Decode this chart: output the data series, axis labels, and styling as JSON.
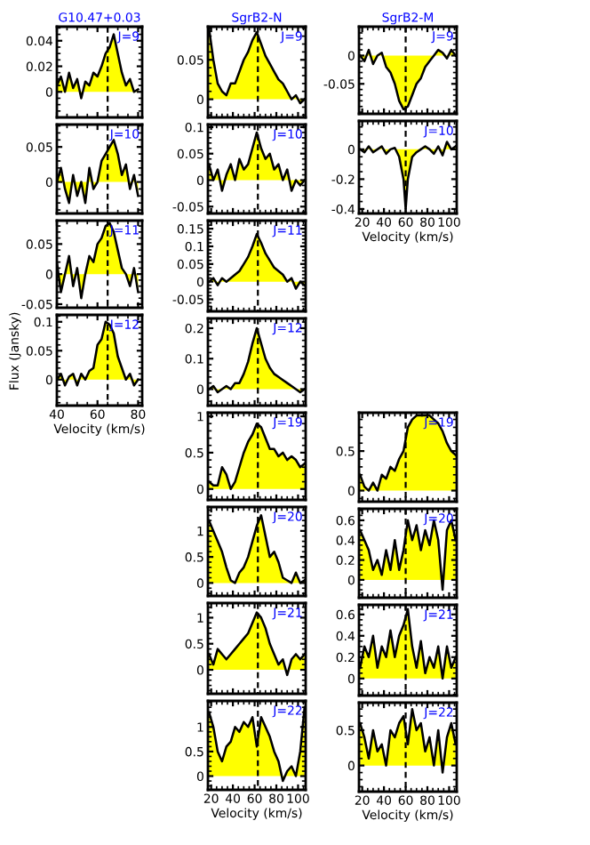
{
  "chart_data": [
    {
      "type": "area",
      "title": "G10.47+0.03",
      "annotations": [
        "J=9"
      ],
      "x": [
        40,
        42,
        44,
        46,
        48,
        50,
        52,
        54,
        56,
        58,
        60,
        62,
        64,
        66,
        68,
        70,
        72,
        74,
        76,
        78,
        80
      ],
      "series": [
        {
          "color": "#ffff00",
          "values": [
            0.005,
            0.012,
            0.0,
            0.015,
            0.003,
            0.01,
            -0.005,
            0.008,
            0.005,
            0.015,
            0.012,
            0.02,
            0.03,
            0.035,
            0.045,
            0.03,
            0.015,
            0.005,
            0.01,
            0.0,
            0.002
          ]
        }
      ],
      "xlim": [
        40,
        82
      ],
      "xticks": [
        40,
        60,
        80
      ],
      "ylim": [
        -0.02,
        0.051
      ],
      "yticks": [
        0,
        0.02,
        0.04
      ],
      "ref_lines": [
        {
          "axis": "x",
          "value": 65,
          "line_style": "dashed"
        }
      ],
      "tick_labels": "y"
    },
    {
      "type": "area",
      "annotations": [
        "J=10"
      ],
      "x": [
        40,
        42,
        44,
        46,
        48,
        50,
        52,
        54,
        56,
        58,
        60,
        62,
        64,
        66,
        68,
        70,
        72,
        74,
        76,
        78,
        80
      ],
      "series": [
        {
          "color": "#ffff00",
          "values": [
            0.0,
            0.02,
            -0.01,
            -0.03,
            0.01,
            -0.02,
            0.0,
            -0.03,
            0.02,
            -0.01,
            0.0,
            0.03,
            0.04,
            0.05,
            0.06,
            0.04,
            0.01,
            0.025,
            -0.01,
            0.01,
            -0.02
          ]
        }
      ],
      "xlim": [
        40,
        82
      ],
      "xticks": [
        40,
        60,
        80
      ],
      "ylim": [
        -0.045,
        0.082
      ],
      "yticks": [
        0,
        0.05
      ],
      "ref_lines": [
        {
          "axis": "x",
          "value": 65,
          "line_style": "dashed"
        }
      ],
      "tick_labels": "y"
    },
    {
      "type": "area",
      "annotations": [
        "J=11"
      ],
      "x": [
        40,
        42,
        44,
        46,
        48,
        50,
        52,
        54,
        56,
        58,
        60,
        62,
        64,
        66,
        68,
        70,
        72,
        74,
        76,
        78,
        80
      ],
      "series": [
        {
          "color": "#ffff00",
          "values": [
            0.02,
            -0.03,
            0.0,
            0.03,
            -0.02,
            0.01,
            -0.04,
            0.0,
            0.03,
            0.02,
            0.05,
            0.06,
            0.08,
            0.085,
            0.07,
            0.04,
            0.01,
            0.0,
            -0.02,
            0.01,
            -0.03
          ]
        }
      ],
      "xlim": [
        40,
        82
      ],
      "xticks": [
        40,
        60,
        80
      ],
      "ylim": [
        -0.056,
        0.089
      ],
      "yticks": [
        -0.05,
        0,
        0.05
      ],
      "ref_lines": [
        {
          "axis": "x",
          "value": 65,
          "line_style": "dashed"
        }
      ],
      "tick_labels": "y"
    },
    {
      "type": "area",
      "annotations": [
        "J=12"
      ],
      "xlabel": "Velocity (km/s)",
      "ylabel": "Flux (Jansky)",
      "x": [
        40,
        42,
        44,
        46,
        48,
        50,
        52,
        54,
        56,
        58,
        60,
        62,
        64,
        66,
        68,
        70,
        72,
        74,
        76,
        78,
        80
      ],
      "series": [
        {
          "color": "#ffff00",
          "values": [
            0.0,
            0.01,
            -0.01,
            0.005,
            0.01,
            -0.01,
            0.01,
            0.0,
            0.015,
            0.02,
            0.06,
            0.07,
            0.1,
            0.095,
            0.08,
            0.04,
            0.02,
            0.0,
            0.01,
            -0.01,
            0.0
          ]
        }
      ],
      "xlim": [
        40,
        82
      ],
      "xticks": [
        40,
        60,
        80
      ],
      "ylim": [
        -0.045,
        0.112
      ],
      "yticks": [
        0,
        0.05,
        0.1
      ],
      "ref_lines": [
        {
          "axis": "x",
          "value": 65,
          "line_style": "dashed"
        }
      ]
    },
    {
      "type": "area",
      "title": "SgrB2-N",
      "annotations": [
        "J=9"
      ],
      "x": [
        18,
        22,
        26,
        30,
        34,
        38,
        42,
        46,
        50,
        54,
        58,
        62,
        66,
        70,
        74,
        78,
        82,
        86,
        90,
        94,
        98,
        102,
        106
      ],
      "series": [
        {
          "color": "#ffff00",
          "values": [
            0.09,
            0.05,
            0.02,
            0.01,
            0.005,
            0.02,
            0.02,
            0.035,
            0.05,
            0.06,
            0.075,
            0.085,
            0.07,
            0.055,
            0.045,
            0.035,
            0.025,
            0.02,
            0.01,
            0.0,
            0.005,
            -0.005,
            0.0
          ]
        }
      ],
      "xlim": [
        17,
        107
      ],
      "xticks": [
        20,
        40,
        60,
        80,
        100
      ],
      "ylim": [
        -0.023,
        0.092
      ],
      "yticks": [
        0,
        0.05
      ],
      "ref_lines": [
        {
          "axis": "x",
          "value": 63,
          "line_style": "dashed"
        }
      ],
      "tick_labels": "y"
    },
    {
      "type": "area",
      "annotations": [
        "J=10"
      ],
      "x": [
        18,
        22,
        26,
        30,
        34,
        38,
        42,
        46,
        50,
        54,
        58,
        62,
        66,
        70,
        74,
        78,
        82,
        86,
        90,
        94,
        98,
        102,
        106
      ],
      "series": [
        {
          "color": "#ffff00",
          "values": [
            0.03,
            0.0,
            0.02,
            -0.02,
            0.01,
            0.03,
            0.0,
            0.04,
            0.02,
            0.03,
            0.06,
            0.09,
            0.06,
            0.04,
            0.05,
            0.02,
            0.03,
            0.0,
            0.02,
            -0.02,
            0.0,
            -0.01,
            0.0
          ]
        }
      ],
      "xlim": [
        17,
        107
      ],
      "xticks": [
        20,
        40,
        60,
        80,
        100
      ],
      "ylim": [
        -0.063,
        0.105
      ],
      "yticks": [
        -0.05,
        0,
        0.05,
        0.1
      ],
      "ref_lines": [
        {
          "axis": "x",
          "value": 63,
          "line_style": "dashed"
        }
      ],
      "tick_labels": "y"
    },
    {
      "type": "area",
      "annotations": [
        "J=11"
      ],
      "x": [
        18,
        22,
        26,
        30,
        34,
        38,
        42,
        46,
        50,
        54,
        58,
        62,
        66,
        70,
        74,
        78,
        82,
        86,
        90,
        94,
        98,
        102,
        106
      ],
      "series": [
        {
          "color": "#ffff00",
          "values": [
            0.0,
            0.01,
            -0.01,
            0.01,
            0.0,
            0.01,
            0.02,
            0.03,
            0.05,
            0.07,
            0.1,
            0.135,
            0.11,
            0.08,
            0.06,
            0.04,
            0.03,
            0.02,
            0.0,
            0.01,
            -0.02,
            0.0,
            -0.01
          ]
        }
      ],
      "xlim": [
        17,
        107
      ],
      "xticks": [
        20,
        40,
        60,
        80,
        100
      ],
      "ylim": [
        -0.084,
        0.173
      ],
      "yticks": [
        -0.05,
        0,
        0.05,
        0.1,
        0.15
      ],
      "ref_lines": [
        {
          "axis": "x",
          "value": 63,
          "line_style": "dashed"
        }
      ],
      "tick_labels": "y"
    },
    {
      "type": "area",
      "annotations": [
        "J=12"
      ],
      "x": [
        18,
        22,
        26,
        30,
        34,
        38,
        42,
        46,
        50,
        54,
        58,
        62,
        66,
        70,
        74,
        78,
        82,
        86,
        90,
        94,
        98,
        102,
        106
      ],
      "series": [
        {
          "color": "#ffff00",
          "values": [
            0.0,
            0.01,
            -0.01,
            0.0,
            0.01,
            0.0,
            0.02,
            0.02,
            0.05,
            0.09,
            0.15,
            0.2,
            0.15,
            0.1,
            0.07,
            0.05,
            0.04,
            0.03,
            0.02,
            0.01,
            0.0,
            -0.01,
            0.0
          ]
        }
      ],
      "xlim": [
        17,
        107
      ],
      "xticks": [
        20,
        40,
        60,
        80,
        100
      ],
      "ylim": [
        -0.054,
        0.232
      ],
      "yticks": [
        0,
        0.1,
        0.2
      ],
      "ref_lines": [
        {
          "axis": "x",
          "value": 63,
          "line_style": "dashed"
        }
      ],
      "tick_labels": "y"
    },
    {
      "type": "area",
      "annotations": [
        "J=19"
      ],
      "x": [
        18,
        22,
        26,
        30,
        34,
        38,
        42,
        46,
        50,
        54,
        58,
        62,
        66,
        70,
        74,
        78,
        82,
        86,
        90,
        94,
        98,
        102,
        106
      ],
      "series": [
        {
          "color": "#ffff00",
          "values": [
            0.1,
            0.05,
            0.05,
            0.3,
            0.2,
            0.0,
            0.1,
            0.3,
            0.5,
            0.65,
            0.75,
            0.9,
            0.85,
            0.7,
            0.55,
            0.55,
            0.45,
            0.5,
            0.4,
            0.45,
            0.4,
            0.3,
            0.35
          ]
        }
      ],
      "xlim": [
        17,
        107
      ],
      "xticks": [
        20,
        40,
        60,
        80,
        100
      ],
      "ylim": [
        -0.15,
        1.05
      ],
      "yticks": [
        0,
        0.5,
        1
      ],
      "ref_lines": [
        {
          "axis": "x",
          "value": 63,
          "line_style": "dashed"
        }
      ],
      "tick_labels": "y"
    },
    {
      "type": "area",
      "annotations": [
        "J=20"
      ],
      "x": [
        18,
        22,
        26,
        30,
        34,
        38,
        42,
        46,
        50,
        54,
        58,
        62,
        66,
        70,
        74,
        78,
        82,
        86,
        90,
        94,
        98,
        102,
        106
      ],
      "series": [
        {
          "color": "#ffff00",
          "values": [
            1.2,
            1.0,
            0.8,
            0.6,
            0.3,
            0.05,
            0.0,
            0.2,
            0.3,
            0.5,
            0.8,
            1.1,
            1.3,
            0.9,
            0.5,
            0.6,
            0.4,
            0.1,
            0.05,
            0.0,
            0.2,
            0.0,
            0.05
          ]
        }
      ],
      "xlim": [
        17,
        107
      ],
      "xticks": [
        20,
        40,
        60,
        80,
        100
      ],
      "ylim": [
        -0.25,
        1.46
      ],
      "yticks": [
        0,
        0.5,
        1
      ],
      "ref_lines": [
        {
          "axis": "x",
          "value": 63,
          "line_style": "dashed"
        }
      ],
      "tick_labels": "y"
    },
    {
      "type": "area",
      "annotations": [
        "J=21"
      ],
      "x": [
        18,
        22,
        26,
        30,
        34,
        38,
        42,
        46,
        50,
        54,
        58,
        62,
        66,
        70,
        74,
        78,
        82,
        86,
        90,
        94,
        98,
        102,
        106
      ],
      "series": [
        {
          "color": "#ffff00",
          "values": [
            0.3,
            0.1,
            0.4,
            0.3,
            0.2,
            0.3,
            0.4,
            0.5,
            0.6,
            0.7,
            0.9,
            1.1,
            1.0,
            0.8,
            0.5,
            0.3,
            0.1,
            0.2,
            -0.1,
            0.2,
            0.3,
            0.2,
            0.3
          ]
        }
      ],
      "xlim": [
        17,
        107
      ],
      "xticks": [
        20,
        40,
        60,
        80,
        100
      ],
      "ylim": [
        -0.46,
        1.28
      ],
      "yticks": [
        0,
        0.5,
        1
      ],
      "ref_lines": [
        {
          "axis": "x",
          "value": 63,
          "line_style": "dashed"
        }
      ],
      "tick_labels": "y"
    },
    {
      "type": "area",
      "annotations": [
        "J=22"
      ],
      "xlabel": "Velocity (km/s)",
      "x": [
        18,
        22,
        26,
        30,
        34,
        38,
        42,
        46,
        50,
        54,
        58,
        62,
        66,
        70,
        74,
        78,
        82,
        86,
        90,
        94,
        98,
        102,
        106
      ],
      "series": [
        {
          "color": "#ffff00",
          "values": [
            1.3,
            1.0,
            0.5,
            0.3,
            0.6,
            0.7,
            1.0,
            0.9,
            1.1,
            1.0,
            1.2,
            0.6,
            1.2,
            1.0,
            0.8,
            0.5,
            0.3,
            -0.1,
            0.1,
            0.2,
            0.0,
            0.5,
            1.4
          ]
        }
      ],
      "xlim": [
        17,
        107
      ],
      "xticks": [
        20,
        40,
        60,
        80,
        100
      ],
      "ylim": [
        -0.28,
        1.53
      ],
      "yticks": [
        0,
        0.5,
        1
      ],
      "ref_lines": [
        {
          "axis": "x",
          "value": 63,
          "line_style": "dashed"
        }
      ]
    },
    {
      "type": "area",
      "title": "SgrB2-M",
      "annotations": [
        "J=9"
      ],
      "x": [
        18,
        22,
        26,
        30,
        34,
        38,
        42,
        46,
        50,
        54,
        58,
        62,
        66,
        70,
        74,
        78,
        82,
        86,
        90,
        94,
        98,
        102,
        106
      ],
      "series": [
        {
          "color": "#ffff00",
          "values": [
            0.0,
            -0.01,
            0.01,
            -0.015,
            0.0,
            0.005,
            -0.02,
            -0.03,
            -0.05,
            -0.08,
            -0.095,
            -0.09,
            -0.07,
            -0.05,
            -0.04,
            -0.02,
            -0.01,
            0.0,
            0.01,
            0.005,
            -0.005,
            0.01,
            0.0
          ]
        }
      ],
      "xlim": [
        17,
        107
      ],
      "xticks": [
        20,
        40,
        60,
        80,
        100
      ],
      "ylim": [
        -0.103,
        0.051
      ],
      "yticks": [
        -0.05,
        0
      ],
      "ref_lines": [
        {
          "axis": "x",
          "value": 60,
          "line_style": "dashed"
        }
      ],
      "tick_labels": "y"
    },
    {
      "type": "area",
      "annotations": [
        "J=10"
      ],
      "xlabel": "Velocity (km/s)",
      "x": [
        18,
        22,
        26,
        30,
        34,
        38,
        42,
        46,
        50,
        54,
        58,
        60,
        62,
        66,
        70,
        74,
        78,
        82,
        86,
        90,
        94,
        98,
        102,
        106
      ],
      "series": [
        {
          "color": "#ffff00",
          "values": [
            0.0,
            -0.02,
            0.02,
            -0.02,
            0.0,
            0.02,
            -0.03,
            0.0,
            0.01,
            -0.05,
            -0.2,
            -0.4,
            -0.2,
            -0.05,
            -0.02,
            0.0,
            0.02,
            0.0,
            -0.03,
            0.02,
            -0.04,
            0.05,
            0.0,
            0.02
          ]
        }
      ],
      "xlim": [
        17,
        107
      ],
      "xticks": [
        20,
        40,
        60,
        80,
        100
      ],
      "ylim": [
        -0.43,
        0.19
      ],
      "yticks": [
        -0.4,
        -0.2,
        0
      ],
      "ref_lines": [
        {
          "axis": "x",
          "value": 60,
          "line_style": "dashed"
        }
      ]
    },
    {
      "type": "area",
      "annotations": [
        "J=19"
      ],
      "x": [
        18,
        22,
        26,
        30,
        34,
        38,
        42,
        46,
        50,
        54,
        58,
        62,
        66,
        70,
        74,
        78,
        82,
        86,
        90,
        94,
        98,
        102,
        106
      ],
      "series": [
        {
          "color": "#ffff00",
          "values": [
            0.2,
            0.05,
            0.0,
            0.1,
            0.0,
            0.2,
            0.15,
            0.3,
            0.25,
            0.4,
            0.5,
            0.8,
            0.9,
            0.95,
            0.95,
            0.95,
            0.95,
            0.9,
            0.85,
            0.75,
            0.6,
            0.5,
            0.45
          ]
        }
      ],
      "xlim": [
        17,
        107
      ],
      "xticks": [
        20,
        40,
        60,
        80,
        100
      ],
      "ylim": [
        -0.14,
        0.985
      ],
      "yticks": [
        0,
        0.5
      ],
      "ref_lines": [
        {
          "axis": "x",
          "value": 60,
          "line_style": "dashed"
        }
      ],
      "tick_labels": "y"
    },
    {
      "type": "area",
      "annotations": [
        "J=20"
      ],
      "x": [
        18,
        22,
        26,
        30,
        34,
        38,
        42,
        46,
        50,
        54,
        58,
        62,
        66,
        70,
        74,
        78,
        82,
        86,
        90,
        94,
        98,
        102,
        106
      ],
      "series": [
        {
          "color": "#ffff00",
          "values": [
            0.5,
            0.4,
            0.3,
            0.1,
            0.2,
            0.05,
            0.3,
            0.1,
            0.4,
            0.1,
            0.3,
            0.6,
            0.4,
            0.55,
            0.3,
            0.5,
            0.35,
            0.6,
            0.4,
            -0.1,
            0.5,
            0.6,
            0.4
          ]
        }
      ],
      "xlim": [
        17,
        107
      ],
      "xticks": [
        20,
        40,
        60,
        80,
        100
      ],
      "ylim": [
        -0.18,
        0.716
      ],
      "yticks": [
        0,
        0.2,
        0.4,
        0.6
      ],
      "ref_lines": [
        {
          "axis": "x",
          "value": 60,
          "line_style": "dashed"
        }
      ],
      "tick_labels": "y"
    },
    {
      "type": "area",
      "annotations": [
        "J=21"
      ],
      "x": [
        18,
        22,
        26,
        30,
        34,
        38,
        42,
        46,
        50,
        54,
        58,
        62,
        66,
        70,
        74,
        78,
        82,
        86,
        90,
        94,
        98,
        102,
        106
      ],
      "series": [
        {
          "color": "#ffff00",
          "values": [
            0.1,
            0.3,
            0.2,
            0.4,
            0.1,
            0.3,
            0.2,
            0.45,
            0.2,
            0.4,
            0.5,
            0.65,
            0.3,
            0.1,
            0.35,
            0.05,
            0.2,
            0.1,
            0.3,
            0.0,
            0.3,
            0.1,
            0.2
          ]
        }
      ],
      "xlim": [
        17,
        107
      ],
      "xticks": [
        20,
        40,
        60,
        80,
        100
      ],
      "ylim": [
        -0.16,
        0.69
      ],
      "yticks": [
        0,
        0.2,
        0.4,
        0.6
      ],
      "ref_lines": [
        {
          "axis": "x",
          "value": 60,
          "line_style": "dashed"
        }
      ],
      "tick_labels": "y"
    },
    {
      "type": "area",
      "annotations": [
        "J=22"
      ],
      "xlabel": "Velocity (km/s)",
      "x": [
        18,
        22,
        26,
        30,
        34,
        38,
        42,
        46,
        50,
        54,
        58,
        62,
        66,
        70,
        74,
        78,
        82,
        86,
        90,
        94,
        98,
        102,
        106
      ],
      "series": [
        {
          "color": "#ffff00",
          "values": [
            0.6,
            0.4,
            0.1,
            0.5,
            0.2,
            0.3,
            0.0,
            0.5,
            0.4,
            0.6,
            0.7,
            0.3,
            0.8,
            0.5,
            0.6,
            0.2,
            0.4,
            0.0,
            0.5,
            -0.1,
            0.4,
            0.6,
            0.3
          ]
        }
      ],
      "xlim": [
        17,
        107
      ],
      "xticks": [
        20,
        40,
        60,
        80,
        100
      ],
      "ylim": [
        -0.37,
        0.89
      ],
      "yticks": [
        0,
        0.5
      ],
      "ref_lines": [
        {
          "axis": "x",
          "value": 60,
          "line_style": "dashed"
        }
      ]
    }
  ]
}
